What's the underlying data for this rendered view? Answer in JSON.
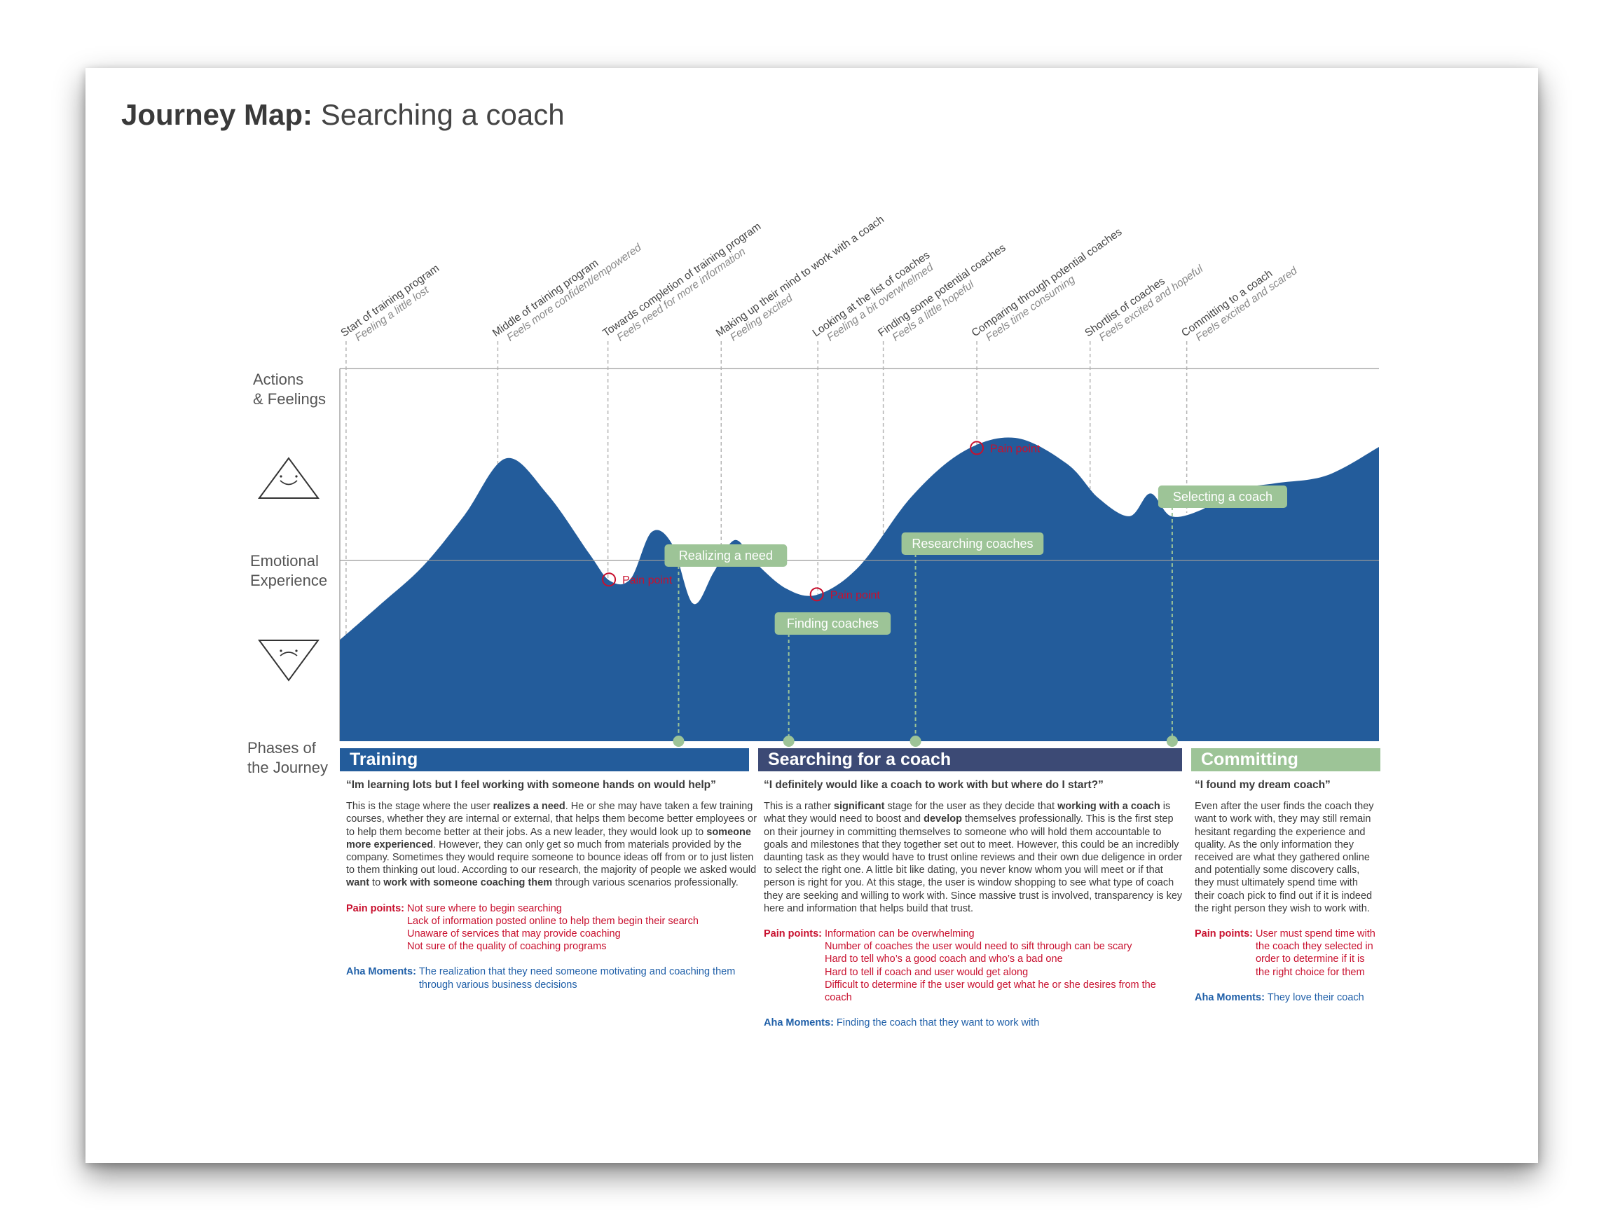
{
  "title": {
    "bold": "Journey Map:",
    "rest": "Searching a coach"
  },
  "row_labels": {
    "actions": [
      "Actions",
      "& Feelings"
    ],
    "emotional": [
      "Emotional",
      "Experience"
    ],
    "phases": [
      "Phases of",
      "the Journey"
    ]
  },
  "chart_data": {
    "type": "area",
    "emotion_curve": {
      "x": [
        0,
        4,
        8,
        12,
        16,
        20,
        24,
        26,
        28,
        30,
        32,
        34,
        36,
        38,
        40,
        43,
        46,
        50,
        55,
        60,
        65,
        70,
        73,
        76,
        78,
        80,
        83,
        86,
        90,
        95,
        100
      ],
      "y": [
        -0.7,
        -0.38,
        -0.05,
        0.4,
        0.9,
        0.58,
        0.06,
        -0.18,
        -0.16,
        0.25,
        0.14,
        -0.38,
        -0.1,
        0.18,
        -0.02,
        -0.25,
        -0.3,
        -0.05,
        0.56,
        0.96,
        1.08,
        0.85,
        0.55,
        0.39,
        0.59,
        0.39,
        0.45,
        0.62,
        0.68,
        0.75,
        1.0
      ]
    },
    "touchpoints": [
      {
        "action": "Start of training program",
        "feeling": "Feeling a little lost"
      },
      {
        "action": "Middle of training program",
        "feeling": "Feels more confident/empowered"
      },
      {
        "action": "Towards completion of training program",
        "feeling": "Feels need for more information"
      },
      {
        "action": "Making up their mind to work with a coach",
        "feeling": "Feeling excited"
      },
      {
        "action": "Looking at the list of coaches",
        "feeling": "Feeling a bit overwhelmed"
      },
      {
        "action": "Finding some potential coaches",
        "feeling": "Feels a little hopeful"
      },
      {
        "action": "Comparing through potential coaches",
        "feeling": "Feels time consuming"
      },
      {
        "action": "Shortlist of coaches",
        "feeling": "Feels excited and hopeful"
      },
      {
        "action": "Committing to a coach",
        "feeling": "Feels excited and scared"
      }
    ],
    "pain_points": [
      "Pain point",
      "Pain point",
      "Pain point"
    ],
    "moments": [
      "Realizing a need",
      "Finding coaches",
      "Researching coaches",
      "Selecting a coach"
    ]
  },
  "phases": [
    {
      "name": "Training",
      "color": "#235c9b",
      "quote": "“Im learning lots but I feel working with someone hands on would help”",
      "desc_html": "This is the stage where the user <b>realizes a need</b>.  He or she may have taken a few training courses, whether they are internal or external, that helps them become better employees or to help them become better at their jobs.  As a new leader, they would look up to <b>someone more experienced</b>.  However, they can only get so much from materials provided by the company.  Sometimes they would require someone to bounce ideas off from or to just listen to them thinking out loud.  According to our research, the majority of people we asked would <b>want</b> to <b>work with someone coaching them</b> through various scenarios professionally.",
      "pain_label": "Pain points:",
      "pain_points": [
        "Not sure where to begin searching",
        "Lack of information posted online to help them begin their search",
        "Unaware of services that may provide coaching",
        "Not sure of the quality of coaching programs"
      ],
      "aha_label": "Aha Moments:",
      "aha": [
        "The realization that they need someone motivating and coaching them through various business decisions"
      ]
    },
    {
      "name": "Searching for a coach",
      "color": "#3c4a75",
      "quote": "“I definitely would like a coach to work with but where do I start?”",
      "desc_html": "This is a rather <b>significant</b> stage for the user as they decide that <b>working with a coach</b> is what they would need to boost and <b>develop</b> themselves professionally. This is the first step on their journey in committing themselves to someone who will hold them accountable to goals and milestones that they together set out to meet. However, this could be an incredibly daunting task as they would have to trust online reviews and their own due deligence in order to select the right one.  A little bit like dating, you never know whom you will meet or if that person is right for you. At this stage, the user is window shopping to see what type of coach they are seeking and willing to work with.  Since massive trust is involved, transparency is key here and information that helps build that trust.",
      "pain_label": "Pain points:",
      "pain_points": [
        "Information can be overwhelming",
        "Number of coaches the user would need to sift through can be scary",
        "Hard to tell who’s a good coach and who’s a bad one",
        "Hard to tell if coach and user would get along",
        "Difficult to determine if the user would get what he or she desires from the coach"
      ],
      "aha_label": "Aha Moments:",
      "aha": [
        "Finding the coach that they want to work with"
      ]
    },
    {
      "name": "Committing",
      "color": "#9dc497",
      "quote": "“I found my dream coach”",
      "desc_html": "Even after the user finds the coach they want to work with, they may still remain hesitant regarding the experience and quality.  As the only information they received are what they gathered online and potentially some discovery calls, they must ultimately spend time with their coach pick to find out if it is indeed the right person they wish to work with.",
      "pain_label": "Pain points:",
      "pain_points": [
        "User must spend time with the coach they selected in order to determine if it is the right choice for them"
      ],
      "aha_label": "Aha Moments:",
      "aha": [
        "They love their coach"
      ]
    }
  ],
  "colors": {
    "area": "#235c9b",
    "moment": "#9dc497",
    "pain": "#c8102e",
    "aha": "#1f5fa8"
  }
}
